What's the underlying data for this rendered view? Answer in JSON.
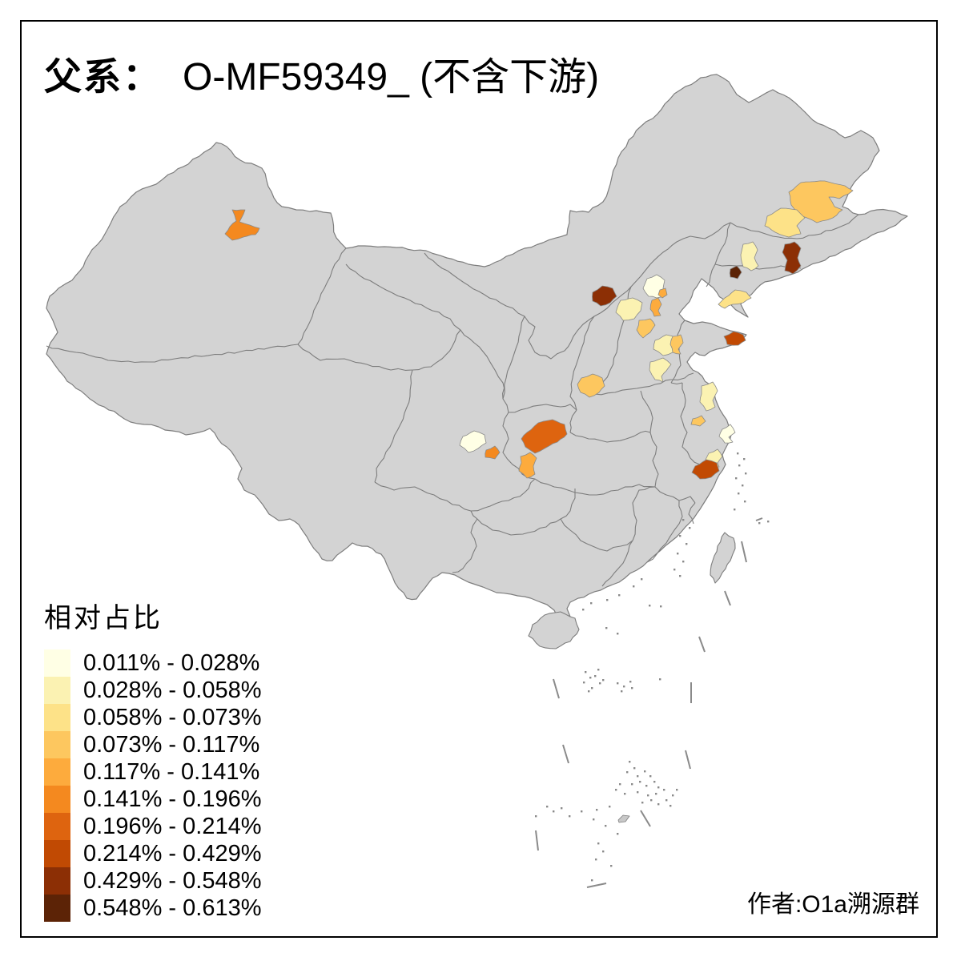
{
  "page": {
    "background": "#ffffff",
    "frame_color": "#000000"
  },
  "title": {
    "prefix": "父系：",
    "name": "O-MF59349_ (不含下游)"
  },
  "legend": {
    "title": "相对占比",
    "items": [
      {
        "label": "0.011% - 0.028%",
        "color": "#FFFFE5"
      },
      {
        "label": "0.028% - 0.058%",
        "color": "#FBF2B2"
      },
      {
        "label": "0.058% - 0.073%",
        "color": "#FDE288"
      },
      {
        "label": "0.073% - 0.117%",
        "color": "#FDC75F"
      },
      {
        "label": "0.117% - 0.141%",
        "color": "#FDAB3D"
      },
      {
        "label": "0.141% - 0.196%",
        "color": "#F4891F"
      },
      {
        "label": "0.196% - 0.214%",
        "color": "#DE640F"
      },
      {
        "label": "0.214% - 0.429%",
        "color": "#C14A03"
      },
      {
        "label": "0.429% - 0.548%",
        "color": "#8C2F05"
      },
      {
        "label": "0.548% - 0.613%",
        "color": "#5C2306"
      }
    ]
  },
  "attribution": "作者:O1a溯源群",
  "map": {
    "type": "choropleth",
    "land_color": "#d3d3d3",
    "border_color": "#7d7d7d",
    "region_border_color": "#8a8a8a",
    "sea_color": "#ffffff",
    "regions": [
      {
        "class": 6,
        "pts": [
          [
            290,
            262
          ],
          [
            306,
            262
          ],
          [
            299,
            277
          ],
          [
            312,
            281
          ],
          [
            324,
            285
          ],
          [
            319,
            293
          ],
          [
            304,
            296
          ],
          [
            290,
            300
          ],
          [
            281,
            292
          ],
          [
            287,
            283
          ],
          [
            295,
            276
          ]
        ]
      },
      {
        "class": 4,
        "pts": [
          [
            985,
            240
          ],
          [
            1000,
            228
          ],
          [
            1030,
            226
          ],
          [
            1055,
            232
          ],
          [
            1065,
            238
          ],
          [
            1048,
            248
          ],
          [
            1035,
            246
          ],
          [
            1042,
            258
          ],
          [
            1052,
            262
          ],
          [
            1040,
            272
          ],
          [
            1020,
            278
          ],
          [
            1002,
            270
          ],
          [
            988,
            256
          ]
        ]
      },
      {
        "class": 3,
        "pts": [
          [
            958,
            270
          ],
          [
            975,
            260
          ],
          [
            995,
            262
          ],
          [
            1005,
            272
          ],
          [
            995,
            282
          ],
          [
            1000,
            292
          ],
          [
            985,
            296
          ],
          [
            968,
            290
          ],
          [
            955,
            282
          ]
        ]
      },
      {
        "class": 2,
        "pts": [
          [
            928,
            305
          ],
          [
            940,
            302
          ],
          [
            946,
            312
          ],
          [
            942,
            322
          ],
          [
            947,
            332
          ],
          [
            938,
            338
          ],
          [
            928,
            333
          ],
          [
            925,
            318
          ]
        ]
      },
      {
        "class": 9,
        "pts": [
          [
            980,
            305
          ],
          [
            992,
            302
          ],
          [
            1000,
            310
          ],
          [
            996,
            322
          ],
          [
            1000,
            332
          ],
          [
            990,
            342
          ],
          [
            980,
            338
          ],
          [
            983,
            325
          ],
          [
            977,
            315
          ]
        ]
      },
      {
        "class": 10,
        "pts": [
          [
            912,
            336
          ],
          [
            920,
            332
          ],
          [
            926,
            340
          ],
          [
            921,
            348
          ],
          [
            912,
            346
          ]
        ]
      },
      {
        "class": 3,
        "pts": [
          [
            905,
            372
          ],
          [
            918,
            362
          ],
          [
            932,
            365
          ],
          [
            938,
            372
          ],
          [
            928,
            378
          ],
          [
            915,
            380
          ],
          [
            905,
            385
          ],
          [
            897,
            380
          ]
        ]
      },
      {
        "class": 9,
        "pts": [
          [
            740,
            365
          ],
          [
            752,
            357
          ],
          [
            765,
            360
          ],
          [
            770,
            370
          ],
          [
            762,
            378
          ],
          [
            750,
            382
          ],
          [
            740,
            376
          ]
        ]
      },
      {
        "class": 1,
        "pts": [
          [
            808,
            348
          ],
          [
            820,
            343
          ],
          [
            830,
            350
          ],
          [
            828,
            360
          ],
          [
            832,
            368
          ],
          [
            820,
            372
          ],
          [
            810,
            370
          ],
          [
            803,
            360
          ]
        ]
      },
      {
        "class": 5,
        "pts": [
          [
            824,
            362
          ],
          [
            831,
            360
          ],
          [
            833,
            368
          ],
          [
            827,
            372
          ],
          [
            822,
            368
          ]
        ]
      },
      {
        "class": 5,
        "pts": [
          [
            814,
            375
          ],
          [
            822,
            372
          ],
          [
            826,
            380
          ],
          [
            822,
            388
          ],
          [
            825,
            394
          ],
          [
            817,
            395
          ],
          [
            812,
            386
          ]
        ]
      },
      {
        "class": 2,
        "pts": [
          [
            775,
            375
          ],
          [
            790,
            372
          ],
          [
            802,
            378
          ],
          [
            800,
            388
          ],
          [
            792,
            398
          ],
          [
            778,
            400
          ],
          [
            769,
            390
          ]
        ]
      },
      {
        "class": 4,
        "pts": [
          [
            798,
            400
          ],
          [
            812,
            398
          ],
          [
            818,
            406
          ],
          [
            812,
            415
          ],
          [
            803,
            422
          ],
          [
            795,
            412
          ]
        ]
      },
      {
        "class": 2,
        "pts": [
          [
            818,
            425
          ],
          [
            832,
            418
          ],
          [
            845,
            422
          ],
          [
            850,
            432
          ],
          [
            840,
            440
          ],
          [
            828,
            444
          ],
          [
            816,
            436
          ]
        ]
      },
      {
        "class": 4,
        "pts": [
          [
            840,
            420
          ],
          [
            850,
            418
          ],
          [
            853,
            428
          ],
          [
            847,
            436
          ],
          [
            850,
            442
          ],
          [
            840,
            440
          ],
          [
            837,
            430
          ]
        ]
      },
      {
        "class": 2,
        "pts": [
          [
            812,
            452
          ],
          [
            828,
            447
          ],
          [
            838,
            455
          ],
          [
            832,
            463
          ],
          [
            826,
            470
          ],
          [
            828,
            477
          ],
          [
            818,
            474
          ],
          [
            811,
            462
          ]
        ]
      },
      {
        "class": 4,
        "pts": [
          [
            726,
            472
          ],
          [
            740,
            467
          ],
          [
            752,
            472
          ],
          [
            755,
            482
          ],
          [
            748,
            490
          ],
          [
            736,
            496
          ],
          [
            725,
            490
          ],
          [
            721,
            480
          ]
        ]
      },
      {
        "class": 8,
        "pts": [
          [
            904,
            420
          ],
          [
            916,
            414
          ],
          [
            928,
            418
          ],
          [
            931,
            425
          ],
          [
            922,
            431
          ],
          [
            908,
            430
          ]
        ]
      },
      {
        "class": 2,
        "pts": [
          [
            876,
            482
          ],
          [
            890,
            477
          ],
          [
            896,
            488
          ],
          [
            890,
            500
          ],
          [
            893,
            508
          ],
          [
            882,
            513
          ],
          [
            874,
            502
          ],
          [
            876,
            492
          ]
        ]
      },
      {
        "class": 4,
        "pts": [
          [
            865,
            523
          ],
          [
            876,
            519
          ],
          [
            881,
            526
          ],
          [
            874,
            532
          ],
          [
            863,
            530
          ]
        ]
      },
      {
        "class": 1,
        "pts": [
          [
            902,
            536
          ],
          [
            912,
            530
          ],
          [
            918,
            540
          ],
          [
            910,
            546
          ],
          [
            915,
            552
          ],
          [
            905,
            553
          ],
          [
            898,
            545
          ]
        ]
      },
      {
        "class": 2,
        "pts": [
          [
            885,
            566
          ],
          [
            896,
            561
          ],
          [
            902,
            570
          ],
          [
            896,
            578
          ],
          [
            898,
            583
          ],
          [
            888,
            582
          ],
          [
            881,
            574
          ]
        ]
      },
      {
        "class": 8,
        "pts": [
          [
            868,
            582
          ],
          [
            882,
            574
          ],
          [
            895,
            578
          ],
          [
            898,
            588
          ],
          [
            888,
            596
          ],
          [
            874,
            598
          ],
          [
            864,
            590
          ]
        ]
      },
      {
        "class": 1,
        "pts": [
          [
            578,
            545
          ],
          [
            592,
            538
          ],
          [
            605,
            543
          ],
          [
            607,
            553
          ],
          [
            597,
            560
          ],
          [
            585,
            565
          ],
          [
            574,
            556
          ]
        ]
      },
      {
        "class": 6,
        "pts": [
          [
            607,
            562
          ],
          [
            618,
            557
          ],
          [
            624,
            565
          ],
          [
            618,
            573
          ],
          [
            606,
            571
          ]
        ]
      },
      {
        "class": 7,
        "pts": [
          [
            658,
            540
          ],
          [
            672,
            528
          ],
          [
            690,
            524
          ],
          [
            705,
            530
          ],
          [
            708,
            542
          ],
          [
            696,
            552
          ],
          [
            680,
            560
          ],
          [
            668,
            566
          ],
          [
            656,
            558
          ],
          [
            651,
            548
          ]
        ]
      },
      {
        "class": 5,
        "pts": [
          [
            650,
            570
          ],
          [
            662,
            565
          ],
          [
            670,
            572
          ],
          [
            666,
            582
          ],
          [
            668,
            592
          ],
          [
            658,
            597
          ],
          [
            648,
            588
          ],
          [
            651,
            578
          ]
        ]
      }
    ]
  }
}
